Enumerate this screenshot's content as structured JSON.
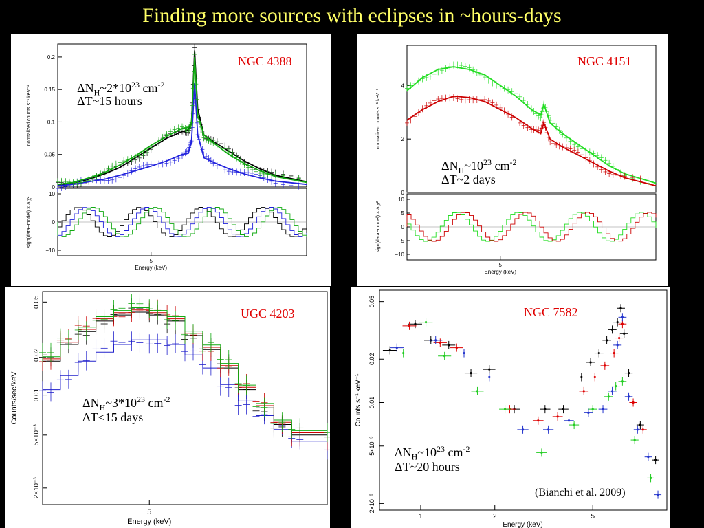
{
  "slide": {
    "title": "Finding more sources with eclipses in ~hours-days"
  },
  "charts": [
    {
      "id": "ngc4388",
      "name": "NGC 4388",
      "annotation": {
        "nh_prefix": "ΔN",
        "nh_sub": "H",
        "nh_mid": "~2*10",
        "nh_exp": "23",
        "nh_unit": " cm",
        "nh_unit_exp": "-2",
        "dt": "ΔT~15 hours"
      },
      "top_ylabel": "normalized counts s⁻¹ keV⁻¹",
      "top_ticks": [
        "0.2",
        "0.15",
        "0.1",
        "0.05",
        "0"
      ],
      "bottom_ylabel": "sign(data−model) × Δ χ²",
      "bottom_ticks": [
        "10",
        "0",
        "−10"
      ],
      "xtick": "5",
      "xlabel": "Energy (keV)"
    },
    {
      "id": "ngc4151",
      "name": "NGC 4151",
      "annotation": {
        "nh_prefix": "ΔN",
        "nh_sub": "H",
        "nh_mid": "~10",
        "nh_exp": "23",
        "nh_unit": " cm",
        "nh_unit_exp": "-2",
        "dt": "ΔT~2 days"
      },
      "top_ylabel": "normalized counts s⁻¹ keV⁻¹",
      "top_ticks": [
        "4",
        "2",
        "0"
      ],
      "bottom_ylabel": "sign(data−model) × Δ χ²",
      "bottom_ticks": [
        "10",
        "5",
        "0",
        "−5",
        "−10"
      ],
      "xtick": "5",
      "xlabel": "Energy (keV)"
    },
    {
      "id": "ugc4203",
      "name": "UGC 4203",
      "annotation": {
        "nh_prefix": "ΔN",
        "nh_sub": "H",
        "nh_mid": "~3*10",
        "nh_exp": "23",
        "nh_unit": " cm",
        "nh_unit_exp": "-2",
        "dt": "ΔT<15 days"
      },
      "ylabel": "Counts/sec/keV",
      "yticks": [
        "0.05",
        "0.02",
        "0.01",
        "5×10⁻³",
        "2×10⁻³"
      ],
      "xtick": "5",
      "xlabel": "Energy (keV)"
    },
    {
      "id": "ngc7582",
      "name": "NGC 7582",
      "annotation": {
        "nh_prefix": "ΔN",
        "nh_sub": "H",
        "nh_mid": "~10",
        "nh_exp": "23",
        "nh_unit": " cm",
        "nh_unit_exp": "-2",
        "dt": "ΔT~20 hours"
      },
      "citation": "(Bianchi et al. 2009)",
      "ylabel": "Counts s⁻¹ keV⁻¹",
      "yticks": [
        "0.05",
        "0.02",
        "0.01",
        "5×10⁻³",
        "2×10⁻³"
      ],
      "xticks": [
        "1",
        "2",
        "5"
      ],
      "xlabel": "Energy (keV)"
    }
  ],
  "chart_data": [
    {
      "type": "line",
      "title": "NGC 4388",
      "xlabel": "Energy (keV)",
      "ylabel": "normalized counts s⁻¹ keV⁻¹",
      "ylim": [
        0,
        0.22
      ],
      "x": [
        2.0,
        2.5,
        3.0,
        3.5,
        4.0,
        4.5,
        5.0,
        5.5,
        6.0,
        6.2,
        6.3,
        6.4,
        6.5,
        6.7,
        7.0,
        7.5,
        8.0,
        8.5,
        9.0,
        10.0
      ],
      "series": [
        {
          "color": "#000000",
          "values": [
            0.003,
            0.006,
            0.012,
            0.02,
            0.03,
            0.045,
            0.06,
            0.075,
            0.085,
            0.088,
            0.1,
            0.21,
            0.12,
            0.08,
            0.07,
            0.055,
            0.04,
            0.028,
            0.018,
            0.008
          ]
        },
        {
          "color": "#2222dd",
          "values": [
            0.002,
            0.004,
            0.008,
            0.012,
            0.018,
            0.025,
            0.032,
            0.04,
            0.05,
            0.052,
            0.07,
            0.16,
            0.08,
            0.045,
            0.038,
            0.028,
            0.02,
            0.014,
            0.009,
            0.004
          ]
        },
        {
          "color": "#11aa11",
          "values": [
            0.004,
            0.007,
            0.014,
            0.022,
            0.034,
            0.048,
            0.064,
            0.078,
            0.09,
            0.092,
            0.1,
            0.2,
            0.11,
            0.08,
            0.068,
            0.05,
            0.036,
            0.025,
            0.016,
            0.007
          ]
        }
      ]
    },
    {
      "type": "line",
      "title": "NGC 4151",
      "xlabel": "Energy (keV)",
      "ylabel": "normalized counts s⁻¹ keV⁻¹",
      "ylim": [
        0,
        5.5
      ],
      "x": [
        2.0,
        2.5,
        3.0,
        3.5,
        4.0,
        4.5,
        5.0,
        5.5,
        6.0,
        6.3,
        6.4,
        6.6,
        7.0,
        7.5,
        8.0,
        8.5,
        9.0,
        10.0
      ],
      "series": [
        {
          "color": "#22dd22",
          "values": [
            3.8,
            4.3,
            4.6,
            4.7,
            4.6,
            4.4,
            4.0,
            3.6,
            3.1,
            2.9,
            3.3,
            2.6,
            2.2,
            1.8,
            1.4,
            1.0,
            0.7,
            0.35
          ]
        },
        {
          "color": "#cc0000",
          "values": [
            2.7,
            3.1,
            3.4,
            3.6,
            3.55,
            3.4,
            3.1,
            2.8,
            2.4,
            2.2,
            2.6,
            2.0,
            1.7,
            1.4,
            1.1,
            0.8,
            0.55,
            0.25
          ]
        }
      ]
    },
    {
      "type": "line",
      "title": "UGC 4203",
      "xlabel": "Energy (keV)",
      "ylabel": "Counts/sec/keV",
      "ylim": [
        0.0015,
        0.06
      ],
      "x": [
        2.0,
        2.5,
        3.0,
        3.5,
        4.0,
        4.5,
        5.0,
        5.5,
        6.0,
        6.5,
        7.0,
        7.5,
        8.0,
        8.5,
        9.0,
        10.0
      ],
      "series": [
        {
          "color": "#000000",
          "values": [
            0.018,
            0.024,
            0.03,
            0.036,
            0.04,
            0.042,
            0.04,
            0.036,
            0.028,
            0.022,
            0.016,
            0.011,
            0.008,
            0.006,
            0.005,
            0.0045
          ]
        },
        {
          "color": "#2222cc",
          "values": [
            0.011,
            0.014,
            0.018,
            0.021,
            0.024,
            0.026,
            0.026,
            0.024,
            0.02,
            0.016,
            0.012,
            0.009,
            0.007,
            0.0055,
            0.0045,
            0.004
          ]
        }
      ]
    },
    {
      "type": "scatter",
      "title": "NGC 7582",
      "xlabel": "Energy (keV)",
      "ylabel": "Counts s⁻¹ keV⁻¹",
      "ylim": [
        0.0018,
        0.06
      ],
      "series": [
        {
          "color": "#000000",
          "x": [
            0.75,
            0.95,
            1.1,
            1.3,
            1.6,
            1.9,
            2.4,
            3.2,
            3.8,
            4.5,
            4.9,
            5.3,
            5.7,
            6.0,
            6.3,
            6.5,
            6.7,
            7.0,
            7.8,
            9.0
          ],
          "y": [
            0.023,
            0.035,
            0.027,
            0.025,
            0.016,
            0.017,
            0.009,
            0.009,
            0.009,
            0.015,
            0.019,
            0.022,
            0.027,
            0.032,
            0.036,
            0.045,
            0.03,
            0.016,
            0.007,
            0.004
          ]
        },
        {
          "color": "#dd0000",
          "x": [
            0.9,
            1.2,
            1.4,
            2.3,
            3.0,
            3.6,
            4.6,
            5.1,
            5.6,
            6.1,
            6.4,
            6.6,
            7.3,
            8.0
          ],
          "y": [
            0.034,
            0.026,
            0.024,
            0.009,
            0.0075,
            0.008,
            0.012,
            0.015,
            0.018,
            0.022,
            0.028,
            0.035,
            0.01,
            0.0065
          ]
        },
        {
          "color": "#22cc22",
          "x": [
            0.85,
            1.05,
            1.25,
            1.7,
            2.2,
            3.1,
            4.2,
            5.0,
            5.8,
            6.2,
            6.6,
            7.4,
            8.6
          ],
          "y": [
            0.022,
            0.036,
            0.021,
            0.012,
            0.009,
            0.0045,
            0.007,
            0.009,
            0.011,
            0.013,
            0.014,
            0.0055,
            0.003
          ]
        },
        {
          "color": "#2233cc",
          "x": [
            0.8,
            1.15,
            1.5,
            1.9,
            2.6,
            3.3,
            4.0,
            4.8,
            5.5,
            6.0,
            6.3,
            6.6,
            7.0,
            7.6,
            8.4,
            9.2
          ],
          "y": [
            0.024,
            0.027,
            0.022,
            0.015,
            0.0065,
            0.0065,
            0.0075,
            0.0085,
            0.009,
            0.012,
            0.025,
            0.039,
            0.011,
            0.0065,
            0.0042,
            0.0023
          ]
        }
      ]
    }
  ]
}
